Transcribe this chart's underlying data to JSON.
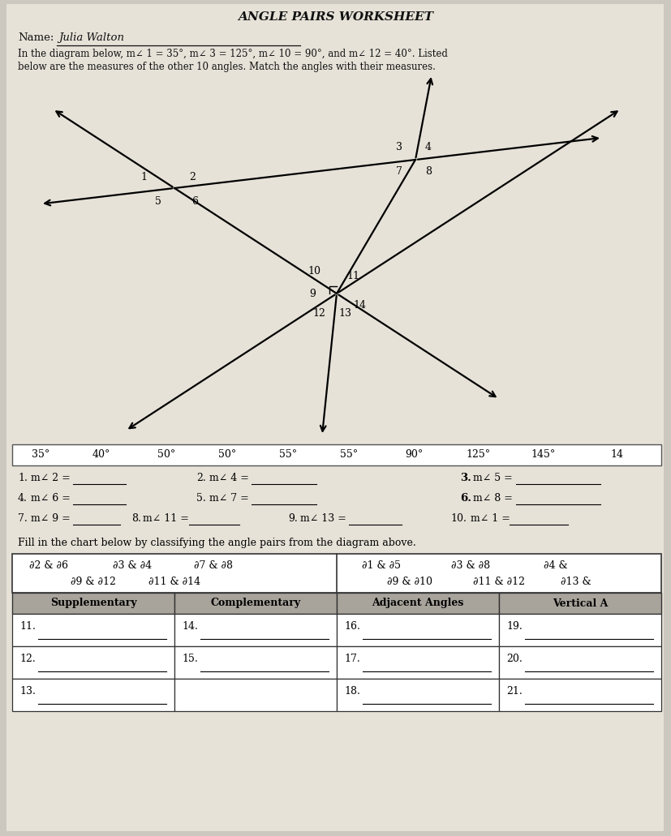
{
  "title": "ANGLE PAIRS WORKSHEET",
  "name_label": "Name:",
  "name_value": "Julia Walton",
  "intro_line1": "In the diagram below, m∠ 1 = 35°, m∠ 3 = 125°, m∠ 10 = 90°, and m∠ 12 = 40°. Listed",
  "intro_line2": "below are the measures of the other 10 angles. Match the angles with their measures.",
  "measures_row": [
    "35°",
    "40°",
    "50°",
    "50°",
    "55°",
    "55°",
    "90°",
    "125°",
    "145°",
    "14"
  ],
  "fill_instruction": "Fill in the chart below by classifying the angle pairs from the diagram above.",
  "col_headers": [
    "Supplementary",
    "Complementary",
    "Adjacent Angles",
    "Vertical A"
  ],
  "bg_color": "#ccc8c0",
  "paper_color": "#e6e2d8"
}
